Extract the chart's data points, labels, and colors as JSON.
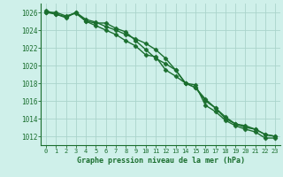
{
  "x": [
    0,
    1,
    2,
    3,
    4,
    5,
    6,
    7,
    8,
    9,
    10,
    11,
    12,
    13,
    14,
    15,
    16,
    17,
    18,
    19,
    20,
    21,
    22,
    23
  ],
  "line1": [
    1026.0,
    1025.8,
    1025.5,
    1026.0,
    1025.2,
    1024.9,
    1024.4,
    1024.0,
    1023.5,
    1023.0,
    1022.5,
    1021.8,
    1020.8,
    1019.5,
    1018.0,
    1017.5,
    1016.0,
    1015.2,
    1014.0,
    1013.4,
    1013.0,
    1012.8,
    1012.2,
    1012.0
  ],
  "line2": [
    1026.2,
    1025.8,
    1025.4,
    1026.0,
    1025.0,
    1024.8,
    1024.8,
    1024.2,
    1023.8,
    1022.8,
    1021.8,
    1020.8,
    1020.2,
    1019.5,
    1018.0,
    1017.5,
    1016.2,
    1015.2,
    1014.2,
    1013.4,
    1013.2,
    1012.8,
    1012.2,
    1012.0
  ],
  "line3": [
    1026.0,
    1026.0,
    1025.6,
    1025.9,
    1025.0,
    1024.5,
    1024.0,
    1023.5,
    1022.8,
    1022.2,
    1021.2,
    1021.0,
    1019.5,
    1018.8,
    1018.0,
    1017.8,
    1015.5,
    1014.8,
    1013.8,
    1013.2,
    1012.8,
    1012.5,
    1011.8,
    1011.8
  ],
  "ylim": [
    1011.0,
    1027.0
  ],
  "yticks": [
    1012,
    1014,
    1016,
    1018,
    1020,
    1022,
    1024,
    1026
  ],
  "xtick_labels": [
    "0",
    "1",
    "2",
    "3",
    "4",
    "5",
    "6",
    "7",
    "8",
    "9",
    "10",
    "11",
    "12",
    "13",
    "14",
    "15",
    "16",
    "17",
    "18",
    "19",
    "20",
    "21",
    "22",
    "23"
  ],
  "xlabel": "Graphe pression niveau de la mer (hPa)",
  "line_color": "#1a6e2e",
  "bg_color": "#cff0ea",
  "grid_color": "#aad4cc",
  "marker": "D",
  "marker_size": 2.5,
  "line_width": 1.0
}
